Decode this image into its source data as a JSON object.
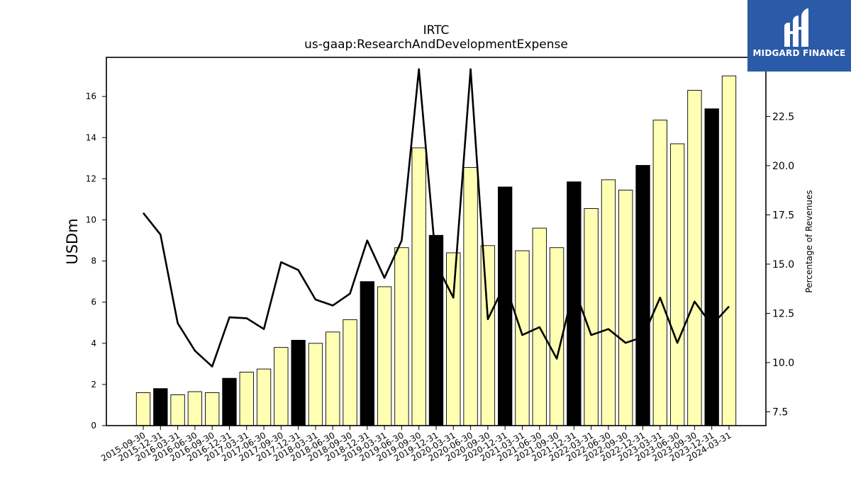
{
  "brand": {
    "name": "MIDGARD FINANCE",
    "bg_color": "#2b5aa8",
    "icon": "midgard-logo-icon"
  },
  "chart_data": {
    "type": "bar",
    "title": "IRTC",
    "subtitle": "us-gaap:ResearchAndDevelopmentExpense",
    "ylabel": "USDm",
    "y2label": "Percentage of Revenues",
    "ylim": [
      0,
      17.9
    ],
    "y2lim": [
      6.8,
      25.5
    ],
    "yticks": [
      0,
      2,
      4,
      6,
      8,
      10,
      12,
      14,
      16
    ],
    "y2ticks": [
      7.5,
      10.0,
      12.5,
      15.0,
      17.5,
      20.0,
      22.5
    ],
    "grid": false,
    "colors": {
      "q4_bar": "#000000",
      "other_bar": "#ffffb3",
      "bar_edge": "#000000",
      "line": "#000000"
    },
    "categories": [
      "2015-09-30",
      "2015-12-31",
      "2016-03-31",
      "2016-06-30",
      "2016-09-30",
      "2016-12-31",
      "2017-03-31",
      "2017-06-30",
      "2017-09-30",
      "2017-12-31",
      "2018-03-31",
      "2018-06-30",
      "2018-09-30",
      "2018-12-31",
      "2019-03-31",
      "2019-06-30",
      "2019-09-30",
      "2019-12-31",
      "2020-03-31",
      "2020-06-30",
      "2020-09-30",
      "2020-12-31",
      "2021-03-31",
      "2021-06-30",
      "2021-09-30",
      "2021-12-31",
      "2022-03-31",
      "2022-06-30",
      "2022-09-30",
      "2022-12-31",
      "2023-03-31",
      "2023-06-30",
      "2023-09-30",
      "2023-12-31",
      "2024-03-31"
    ],
    "series": [
      {
        "type": "bar",
        "values": [
          1.6,
          1.8,
          1.5,
          1.65,
          1.6,
          2.3,
          2.6,
          2.75,
          3.8,
          4.15,
          4.0,
          4.55,
          5.15,
          7.0,
          6.75,
          8.65,
          13.5,
          9.25,
          8.4,
          12.55,
          8.75,
          11.6,
          8.5,
          9.6,
          8.65,
          11.85,
          10.55,
          11.95,
          11.45,
          12.65,
          14.85,
          13.7,
          16.3,
          15.4,
          17.0
        ],
        "highlight": [
          false,
          true,
          false,
          false,
          false,
          true,
          false,
          false,
          false,
          true,
          false,
          false,
          false,
          true,
          false,
          false,
          false,
          true,
          false,
          false,
          false,
          true,
          false,
          false,
          false,
          true,
          false,
          false,
          false,
          true,
          false,
          false,
          false,
          true,
          false
        ]
      },
      {
        "type": "line",
        "axis": "right",
        "values": [
          17.6,
          16.5,
          12.0,
          10.6,
          9.8,
          12.3,
          12.25,
          11.7,
          15.1,
          14.7,
          13.2,
          12.9,
          13.5,
          16.2,
          14.3,
          16.2,
          24.9,
          15.0,
          13.3,
          24.9,
          12.2,
          14.0,
          11.4,
          11.8,
          10.2,
          13.8,
          11.4,
          11.7,
          11.0,
          11.3,
          13.3,
          11.0,
          13.1,
          11.9,
          12.85
        ]
      }
    ]
  }
}
